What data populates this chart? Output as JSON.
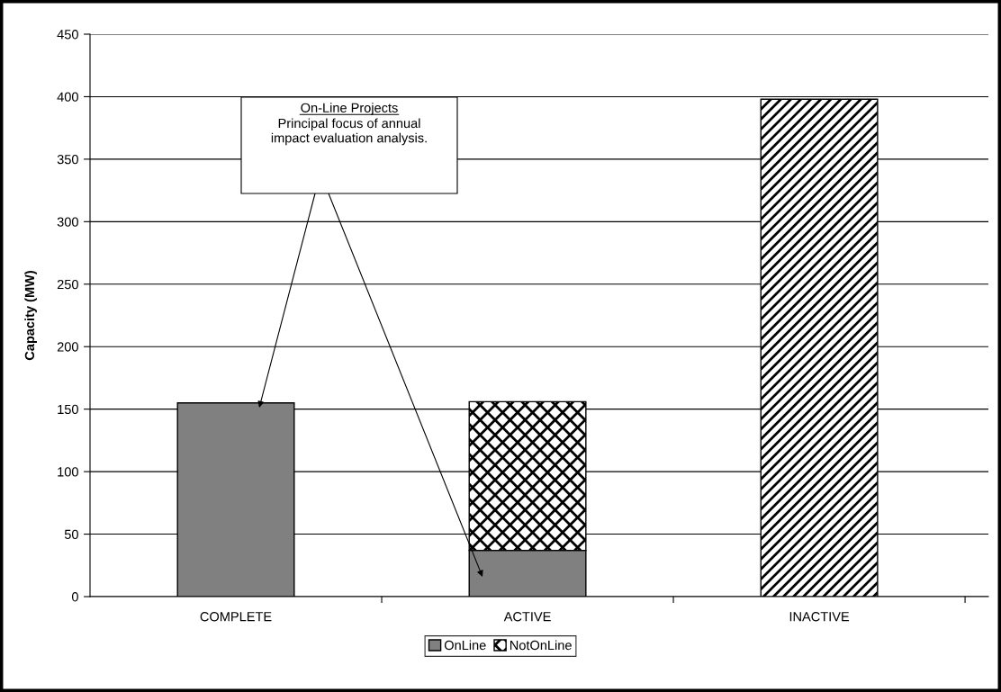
{
  "chart_data": {
    "type": "bar",
    "stacked": true,
    "categories": [
      "COMPLETE",
      "ACTIVE",
      "INACTIVE"
    ],
    "series": [
      {
        "name": "OnLine",
        "color": "#808080",
        "values": [
          155,
          37,
          null
        ]
      },
      {
        "name": "NotOnLine",
        "color": "#000000",
        "values": [
          null,
          119,
          398
        ]
      }
    ],
    "ylabel": "Capacity (MW)",
    "ylim": [
      0,
      450
    ],
    "yticks": [
      0,
      50,
      100,
      150,
      200,
      250,
      300,
      350,
      400,
      450
    ],
    "grid": "y",
    "legend": "bottom",
    "annotations": [
      "On-Line Projects",
      "Principal focus of annual\nimpact evaluation analysis."
    ]
  }
}
